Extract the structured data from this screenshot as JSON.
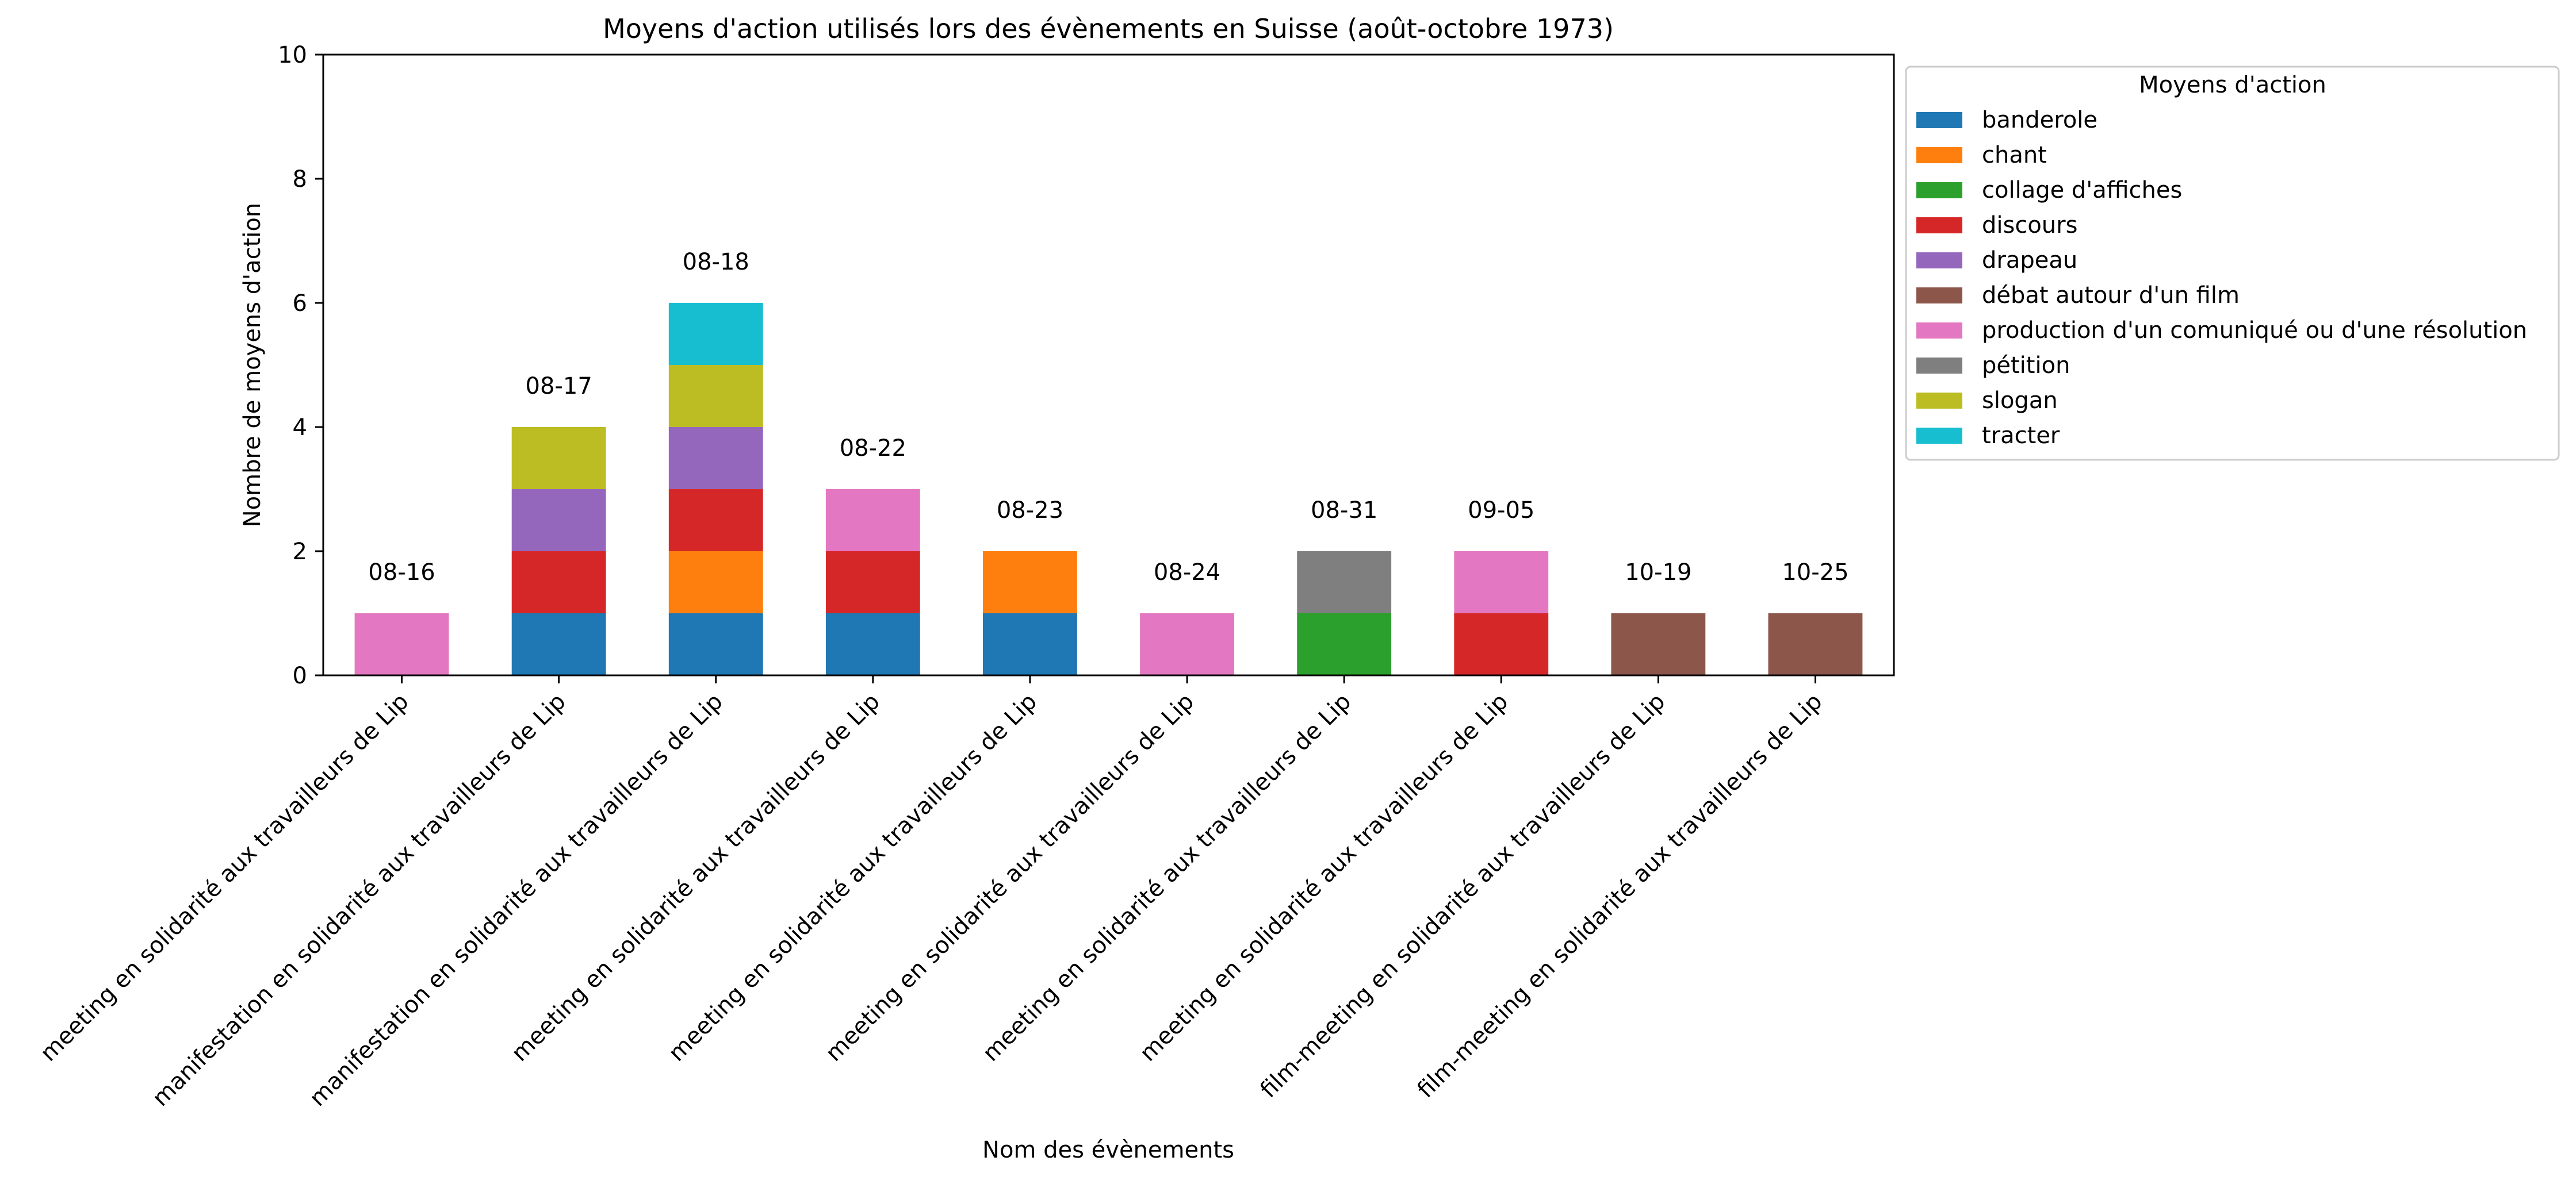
{
  "chart_data": {
    "type": "bar",
    "stacked": true,
    "title": "Moyens d'action utilisés lors des évènements en Suisse (août-octobre 1973)",
    "xlabel": "Nom des évènements",
    "ylabel": "Nombre de moyens d'action",
    "ylim": [
      0,
      10
    ],
    "yticks": [
      "0",
      "2",
      "4",
      "6",
      "8",
      "10"
    ],
    "grid": false,
    "legend": {
      "title": "Moyens d'action",
      "placement": "outside-right-top"
    },
    "categories": [
      "meeting en solidarité aux travailleurs de Lip",
      "manifestation en solidarité aux travailleurs de Lip",
      "manifestation en solidarité aux travailleurs de Lip",
      "meeting en solidarité aux travailleurs de Lip",
      "meeting en solidarité aux travailleurs de Lip",
      "meeting en solidarité aux travailleurs de Lip",
      "meeting en solidarité aux travailleurs de Lip",
      "meeting en solidarité aux travailleurs de Lip",
      "film-meeting en solidarité aux travailleurs de Lip",
      "film-meeting en solidarité aux travailleurs de Lip"
    ],
    "bar_labels": [
      "08-16",
      "08-17",
      "08-18",
      "08-22",
      "08-23",
      "08-24",
      "08-31",
      "09-05",
      "10-19",
      "10-25"
    ],
    "series": [
      {
        "name": "banderole",
        "color": "#1f77b4",
        "values": [
          0,
          1,
          1,
          1,
          1,
          0,
          0,
          0,
          0,
          0
        ]
      },
      {
        "name": "chant",
        "color": "#ff7f0e",
        "values": [
          0,
          0,
          1,
          0,
          1,
          0,
          0,
          0,
          0,
          0
        ]
      },
      {
        "name": "collage d'affiches",
        "color": "#2ca02c",
        "values": [
          0,
          0,
          0,
          0,
          0,
          0,
          1,
          0,
          0,
          0
        ]
      },
      {
        "name": "discours",
        "color": "#d62728",
        "values": [
          0,
          1,
          1,
          1,
          0,
          0,
          0,
          1,
          0,
          0
        ]
      },
      {
        "name": "drapeau",
        "color": "#9467bd",
        "values": [
          0,
          1,
          1,
          0,
          0,
          0,
          0,
          0,
          0,
          0
        ]
      },
      {
        "name": "débat autour d'un film",
        "color": "#8c564b",
        "values": [
          0,
          0,
          0,
          0,
          0,
          0,
          0,
          0,
          1,
          1
        ]
      },
      {
        "name": "production d'un comuniqué ou d'une résolution",
        "color": "#e377c2",
        "values": [
          1,
          0,
          0,
          1,
          0,
          1,
          0,
          1,
          0,
          0
        ]
      },
      {
        "name": "pétition",
        "color": "#7f7f7f",
        "values": [
          0,
          0,
          0,
          0,
          0,
          0,
          1,
          0,
          0,
          0
        ]
      },
      {
        "name": "slogan",
        "color": "#bcbd22",
        "values": [
          0,
          1,
          1,
          0,
          0,
          0,
          0,
          0,
          0,
          0
        ]
      },
      {
        "name": "tracter",
        "color": "#17becf",
        "values": [
          0,
          0,
          1,
          0,
          0,
          0,
          0,
          0,
          0,
          0
        ]
      }
    ]
  }
}
